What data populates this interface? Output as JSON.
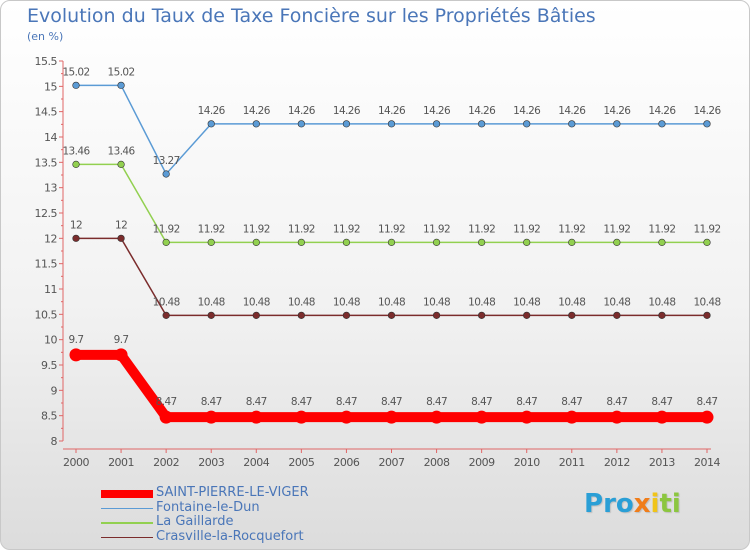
{
  "chart_data": {
    "type": "line",
    "title": "Evolution du Taux de Taxe Foncière sur les Propriétés Bâties",
    "subtitle": "(en %)",
    "xlabel": "",
    "ylabel": "",
    "categories": [
      "2000",
      "2001",
      "2002",
      "2003",
      "2004",
      "2005",
      "2006",
      "2007",
      "2008",
      "2009",
      "2010",
      "2011",
      "2012",
      "2013",
      "2014"
    ],
    "ylim": [
      8,
      15.5
    ],
    "yticks": [
      "8",
      "8.5",
      "9",
      "9.5",
      "10",
      "10.5",
      "11",
      "11.5",
      "12",
      "12.5",
      "13",
      "13.5",
      "14",
      "14.5",
      "15",
      "15.5"
    ],
    "grid": false,
    "legend_position": "bottom-left",
    "series": [
      {
        "name": "Fontaine-le-Dun",
        "color": "#5b9bd5",
        "bold": false,
        "values": [
          15.02,
          15.02,
          13.27,
          14.26,
          14.26,
          14.26,
          14.26,
          14.26,
          14.26,
          14.26,
          14.26,
          14.26,
          14.26,
          14.26,
          14.26
        ],
        "labels": [
          "15.02",
          "15.02",
          "13.27",
          "14.26",
          "14.26",
          "14.26",
          "14.26",
          "14.26",
          "14.26",
          "14.26",
          "14.26",
          "14.26",
          "14.26",
          "14.26",
          "14.26"
        ]
      },
      {
        "name": "La Gaillarde",
        "color": "#92d050",
        "bold": false,
        "values": [
          13.46,
          13.46,
          11.92,
          11.92,
          11.92,
          11.92,
          11.92,
          11.92,
          11.92,
          11.92,
          11.92,
          11.92,
          11.92,
          11.92,
          11.92
        ],
        "labels": [
          "13.46",
          "13.46",
          "11.92",
          "11.92",
          "11.92",
          "11.92",
          "11.92",
          "11.92",
          "11.92",
          "11.92",
          "11.92",
          "11.92",
          "11.92",
          "11.92",
          "11.92"
        ]
      },
      {
        "name": "Crasville-la-Rocquefort",
        "color": "#7b2c2c",
        "bold": false,
        "values": [
          12,
          12,
          10.48,
          10.48,
          10.48,
          10.48,
          10.48,
          10.48,
          10.48,
          10.48,
          10.48,
          10.48,
          10.48,
          10.48,
          10.48
        ],
        "labels": [
          "12",
          "12",
          "10.48",
          "10.48",
          "10.48",
          "10.48",
          "10.48",
          "10.48",
          "10.48",
          "10.48",
          "10.48",
          "10.48",
          "10.48",
          "10.48",
          "10.48"
        ]
      },
      {
        "name": "SAINT-PIERRE-LE-VIGER",
        "color": "#ff0000",
        "bold": true,
        "values": [
          9.7,
          9.7,
          8.47,
          8.47,
          8.47,
          8.47,
          8.47,
          8.47,
          8.47,
          8.47,
          8.47,
          8.47,
          8.47,
          8.47,
          8.47
        ],
        "labels": [
          "9.7",
          "9.7",
          "8.47",
          "8.47",
          "8.47",
          "8.47",
          "8.47",
          "8.47",
          "8.47",
          "8.47",
          "8.47",
          "8.47",
          "8.47",
          "8.47",
          "8.47"
        ]
      }
    ],
    "legend_order": [
      "SAINT-PIERRE-LE-VIGER",
      "Fontaine-le-Dun",
      "La Gaillarde",
      "Crasville-la-Rocquefort"
    ]
  },
  "logo": {
    "letters": [
      "P",
      "r",
      "o",
      "x",
      "i",
      "t",
      "i"
    ],
    "colors": [
      "#2a9fd6",
      "#2a9fd6",
      "#2a9fd6",
      "#f07d1a",
      "#f0c419",
      "#8cc63f",
      "#8cc63f"
    ]
  }
}
